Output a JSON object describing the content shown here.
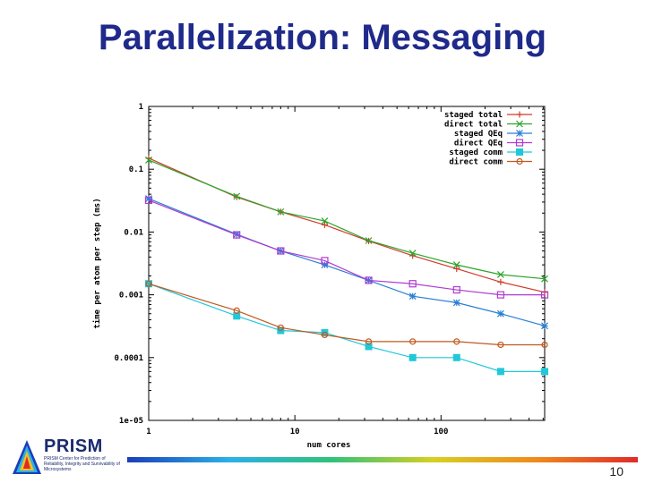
{
  "slide": {
    "title": "Parallelization: Messaging",
    "page_number": "10",
    "logo": {
      "name": "PRISM",
      "subtitle": "PRISM Center for Prediction of Reliability, Integrity and Survivability of Microsystems"
    }
  },
  "colors": {
    "title": "#1f2a8a",
    "staged_total": "#d23b2a",
    "direct_total": "#2aa52a",
    "staged_qeq": "#2a7fd4",
    "direct_qeq": "#b03ad0",
    "staged_comm": "#20c8d8",
    "direct_comm": "#c0581e"
  },
  "chart_data": {
    "type": "line",
    "xscale": "log",
    "yscale": "log",
    "xlabel": "num cores",
    "ylabel": "time per atom per step (ms)",
    "xlim": [
      1,
      512
    ],
    "ylim": [
      1e-05,
      1
    ],
    "xticks": [
      1,
      10,
      100
    ],
    "xtick_labels": [
      "1",
      "10",
      "100"
    ],
    "yticks": [
      1e-05,
      0.0001,
      0.001,
      0.01,
      0.1,
      1
    ],
    "ytick_labels": [
      "1e-05",
      "0.0001",
      "0.001",
      "0.01",
      "0.1",
      "1"
    ],
    "legend_position": "top-right",
    "grid": false,
    "x": [
      1,
      4,
      8,
      16,
      32,
      64,
      128,
      256,
      512
    ],
    "series": [
      {
        "name": "staged total",
        "marker": "plus",
        "color": "#d23b2a",
        "values": [
          0.15,
          0.036,
          0.021,
          0.013,
          0.0072,
          0.0042,
          0.0026,
          0.0016,
          0.0011
        ]
      },
      {
        "name": "direct total",
        "marker": "cross",
        "color": "#2aa52a",
        "values": [
          0.14,
          0.037,
          0.021,
          0.015,
          0.0073,
          0.0046,
          0.003,
          0.0021,
          0.0018
        ]
      },
      {
        "name": "staged QEq",
        "marker": "star",
        "color": "#2a7fd4",
        "values": [
          0.034,
          0.0092,
          0.005,
          0.003,
          0.0017,
          0.00095,
          0.00075,
          0.0005,
          0.00032
        ]
      },
      {
        "name": "direct QEq",
        "marker": "square-open",
        "color": "#b03ad0",
        "values": [
          0.032,
          0.009,
          0.005,
          0.0035,
          0.0017,
          0.0015,
          0.0012,
          0.001,
          0.001
        ]
      },
      {
        "name": "staged comm",
        "marker": "square-filled",
        "color": "#20c8d8",
        "values": [
          0.0015,
          0.00046,
          0.00027,
          0.00025,
          0.00015,
          0.0001,
          0.0001,
          6e-05,
          6e-05
        ]
      },
      {
        "name": "direct comm",
        "marker": "circle",
        "color": "#c0581e",
        "values": [
          0.0015,
          0.00056,
          0.0003,
          0.00023,
          0.00018,
          0.00018,
          0.00018,
          0.00016,
          0.00016
        ]
      }
    ]
  }
}
